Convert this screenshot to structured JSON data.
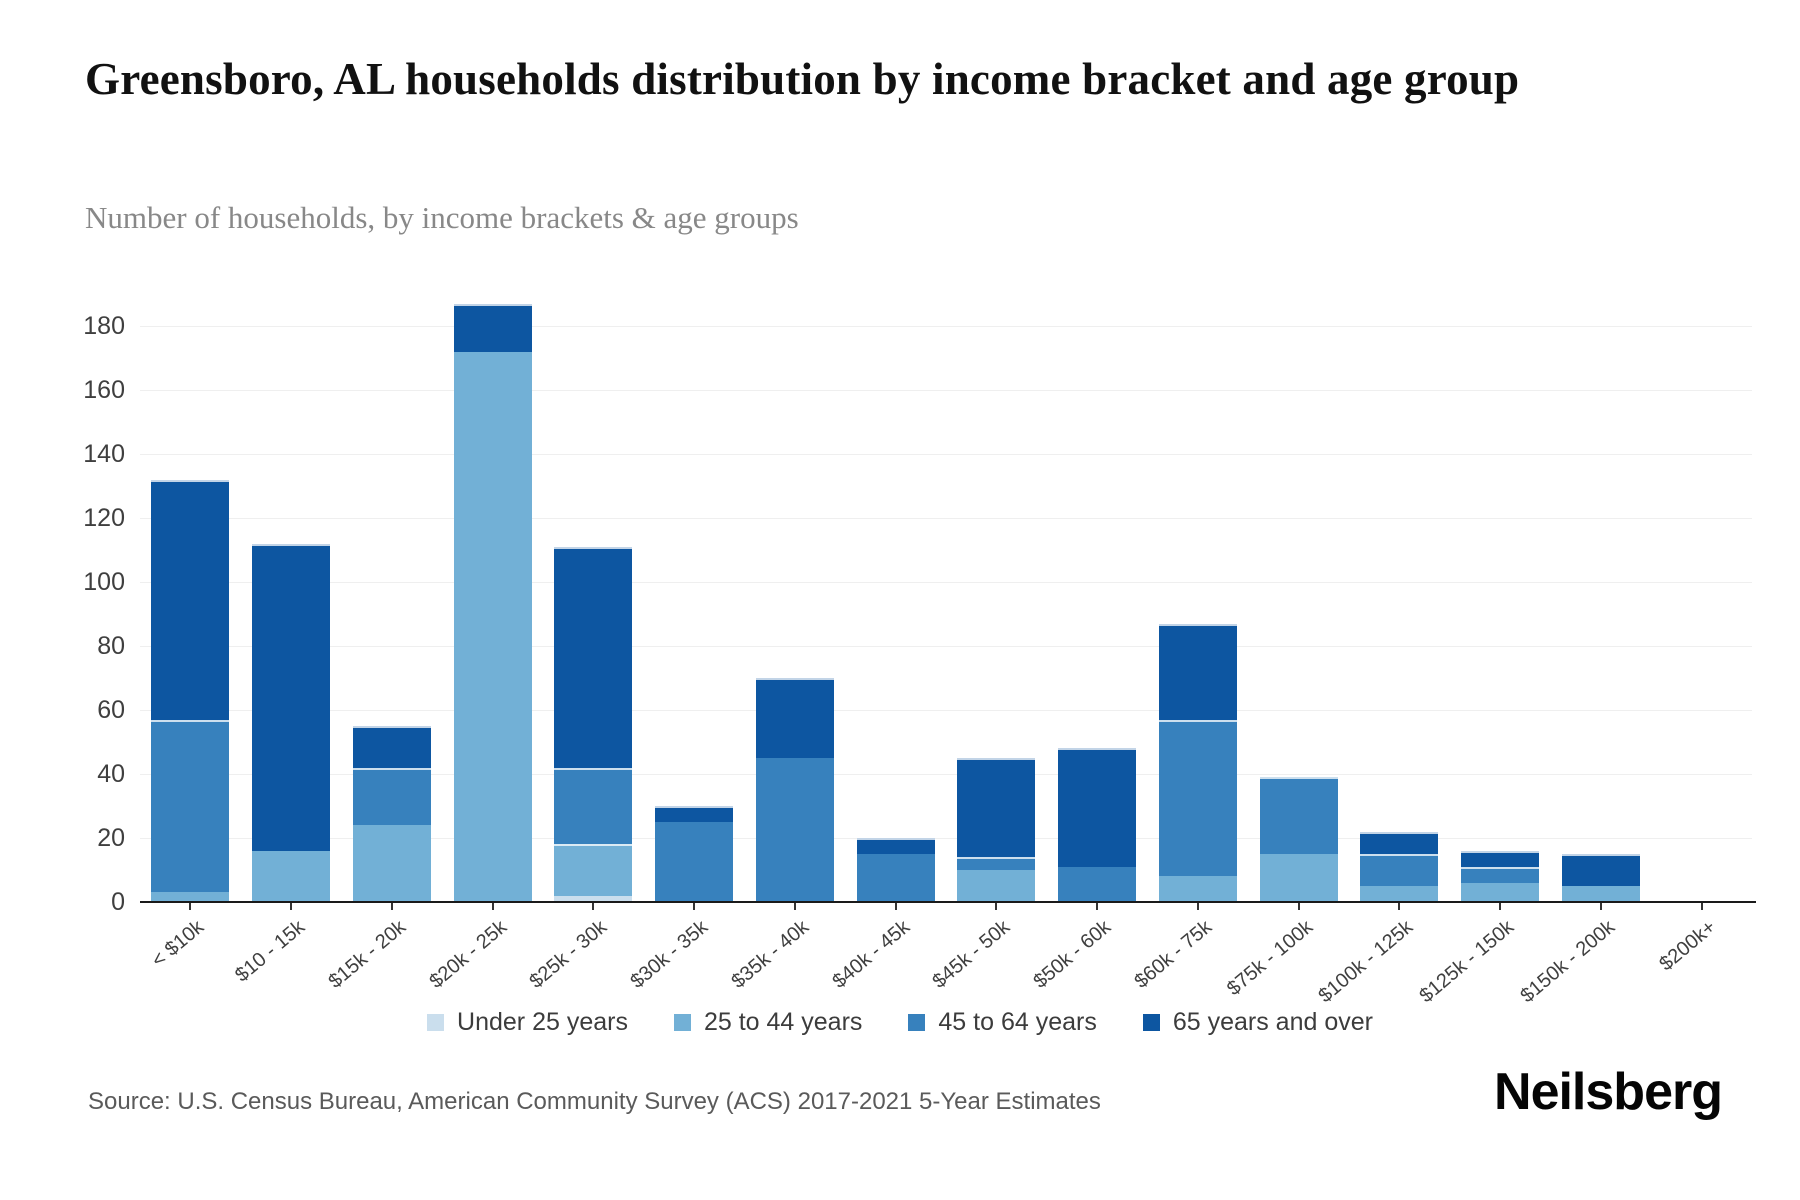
{
  "header": {
    "title": "Greensboro, AL households distribution by income bracket and age group",
    "subtitle": "Number of households, by income brackets & age groups"
  },
  "footer": {
    "source": "Source: U.S. Census Bureau, American Community Survey (ACS) 2017-2021 5-Year Estimates",
    "logo": "Neilsberg"
  },
  "colors": {
    "under_25": "#cadeed",
    "age_25_44": "#72b0d6",
    "age_45_64": "#3781bd",
    "age_65_over": "#0d56a1",
    "axis": "#1a1a1a",
    "gridline": "#efefef"
  },
  "chart_data": {
    "type": "bar",
    "stacked": true,
    "title": "Greensboro, AL households distribution by income bracket and age group",
    "subtitle": "Number of households, by income brackets & age groups",
    "xlabel": "",
    "ylabel": "",
    "ylim": [
      0,
      190
    ],
    "yticks": [
      0,
      20,
      40,
      60,
      80,
      100,
      120,
      140,
      160,
      180
    ],
    "grid": "horizontal",
    "legend_position": "bottom",
    "categories": [
      "< $10k",
      "$10 - 15k",
      "$15k - 20k",
      "$20k - 25k",
      "$25k - 30k",
      "$30k - 35k",
      "$35k - 40k",
      "$40k - 45k",
      "$45k - 50k",
      "$50k - 60k",
      "$60k - 75k",
      "$75k - 100k",
      "$100k - 125k",
      "$125k - 150k",
      "$150k - 200k",
      "$200k+"
    ],
    "series": [
      {
        "name": "Under 25 years",
        "color": "#cadeed",
        "values": [
          0,
          0,
          0,
          0,
          2,
          0,
          0,
          0,
          0,
          0,
          0,
          0,
          0,
          0,
          0,
          0
        ]
      },
      {
        "name": "25 to 44 years",
        "color": "#72b0d6",
        "values": [
          3,
          16,
          24,
          172,
          16,
          0,
          0,
          0,
          10,
          0,
          8,
          15,
          5,
          6,
          5,
          0
        ]
      },
      {
        "name": "45 to 64 years",
        "color": "#3781bd",
        "values": [
          54,
          0,
          18,
          0,
          24,
          25,
          45,
          15,
          4,
          11,
          49,
          24,
          10,
          5,
          0,
          0
        ]
      },
      {
        "name": "65 years and over",
        "color": "#0d56a1",
        "values": [
          75,
          96,
          13,
          15,
          69,
          5,
          25,
          5,
          31,
          37,
          30,
          0,
          7,
          5,
          10,
          0
        ]
      }
    ]
  }
}
